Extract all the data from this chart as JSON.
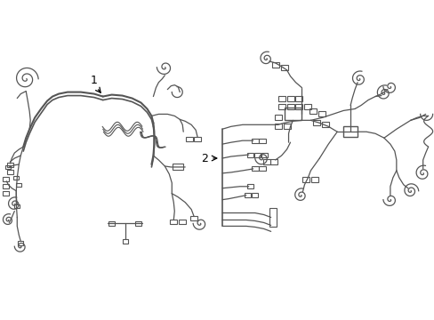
{
  "background_color": "#ffffff",
  "line_color": "#555555",
  "line_width": 0.9,
  "fig_width": 4.89,
  "fig_height": 3.6,
  "dpi": 100,
  "label1": "1",
  "label2": "2"
}
